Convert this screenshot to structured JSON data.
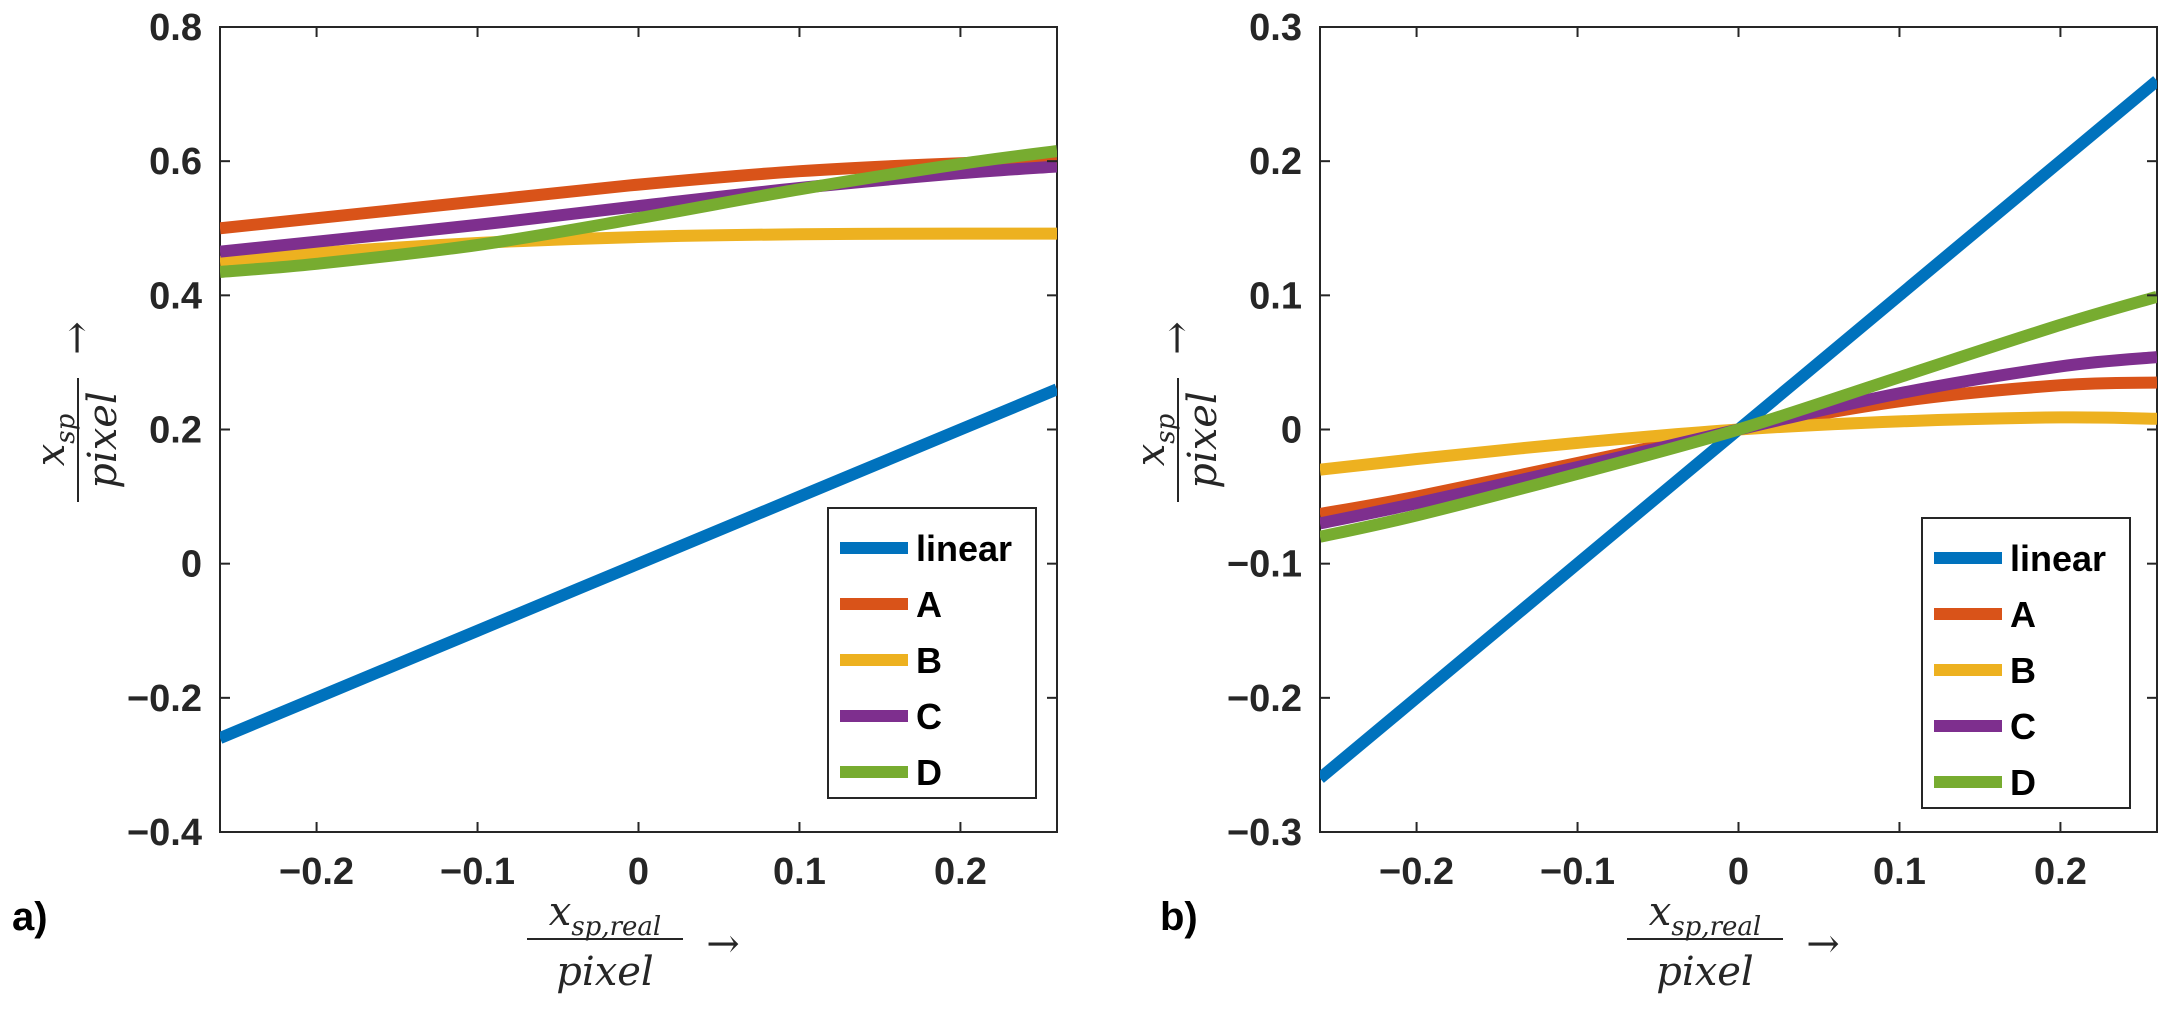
{
  "charts": [
    {
      "panel_label": "a)",
      "xlabel": {
        "numerator": "x",
        "numerator_sub": "sp,real",
        "denominator": "pixel",
        "arrow": "→"
      },
      "ylabel": {
        "numerator": "x",
        "numerator_sub": "sp",
        "denominator": "pixel",
        "arrow": "→"
      },
      "xticks": [
        "−0.2",
        "−0.1",
        "0",
        "0.1",
        "0.2"
      ],
      "yticks": [
        "0.8",
        "0.6",
        "0.4",
        "0.2",
        "0",
        "−0.2",
        "−0.4"
      ]
    },
    {
      "panel_label": "b)",
      "xlabel": {
        "numerator": "x",
        "numerator_sub": "sp,real",
        "denominator": "pixel",
        "arrow": "→"
      },
      "ylabel": {
        "numerator": "x",
        "numerator_sub": "sp",
        "denominator": "pixel",
        "arrow": "→"
      },
      "xticks": [
        "−0.2",
        "−0.1",
        "0",
        "0.1",
        "0.2"
      ],
      "yticks": [
        "0.3",
        "0.2",
        "0.1",
        "0",
        "−0.1",
        "−0.2",
        "−0.3"
      ]
    }
  ],
  "chart_data": [
    {
      "type": "line",
      "title": "",
      "xlim": [
        -0.26,
        0.26
      ],
      "ylim": [
        -0.4,
        0.8
      ],
      "xtick_values": [
        -0.2,
        -0.1,
        0,
        0.1,
        0.2
      ],
      "ytick_values": [
        0.8,
        0.6,
        0.4,
        0.2,
        0,
        -0.2,
        -0.4
      ],
      "legend_position": "bottom-right",
      "x": [
        -0.26,
        -0.2,
        -0.1,
        0,
        0.1,
        0.2,
        0.26
      ],
      "series": [
        {
          "name": "linear",
          "color": "#0072BD",
          "values": [
            -0.26,
            -0.2,
            -0.1,
            0,
            0.1,
            0.2,
            0.26
          ]
        },
        {
          "name": "A",
          "color": "#D95319",
          "values": [
            0.5,
            0.515,
            0.54,
            0.565,
            0.585,
            0.597,
            0.6
          ]
        },
        {
          "name": "B",
          "color": "#EDB120",
          "values": [
            0.45,
            0.463,
            0.478,
            0.487,
            0.491,
            0.492,
            0.492
          ]
        },
        {
          "name": "C",
          "color": "#7E2F8E",
          "values": [
            0.465,
            0.48,
            0.505,
            0.533,
            0.56,
            0.582,
            0.592
          ]
        },
        {
          "name": "D",
          "color": "#77AC30",
          "values": [
            0.435,
            0.447,
            0.475,
            0.515,
            0.558,
            0.596,
            0.615
          ]
        }
      ]
    },
    {
      "type": "line",
      "title": "",
      "xlim": [
        -0.26,
        0.26
      ],
      "ylim": [
        -0.3,
        0.3
      ],
      "xtick_values": [
        -0.2,
        -0.1,
        0,
        0.1,
        0.2
      ],
      "ytick_values": [
        0.3,
        0.2,
        0.1,
        0,
        -0.1,
        -0.2,
        -0.3
      ],
      "legend_position": "bottom-right",
      "x": [
        -0.26,
        -0.2,
        -0.1,
        0,
        0.1,
        0.2,
        0.26
      ],
      "series": [
        {
          "name": "linear",
          "color": "#0072BD",
          "values": [
            -0.26,
            -0.2,
            -0.1,
            0,
            0.1,
            0.2,
            0.26
          ]
        },
        {
          "name": "A",
          "color": "#D95319",
          "values": [
            -0.063,
            -0.05,
            -0.025,
            0,
            0.021,
            0.033,
            0.035
          ]
        },
        {
          "name": "B",
          "color": "#EDB120",
          "values": [
            -0.03,
            -0.022,
            -0.01,
            0,
            0.006,
            0.009,
            0.008
          ]
        },
        {
          "name": "C",
          "color": "#7E2F8E",
          "values": [
            -0.07,
            -0.055,
            -0.028,
            0,
            0.027,
            0.047,
            0.054
          ]
        },
        {
          "name": "D",
          "color": "#77AC30",
          "values": [
            -0.08,
            -0.064,
            -0.033,
            0,
            0.039,
            0.078,
            0.099
          ]
        }
      ]
    }
  ]
}
